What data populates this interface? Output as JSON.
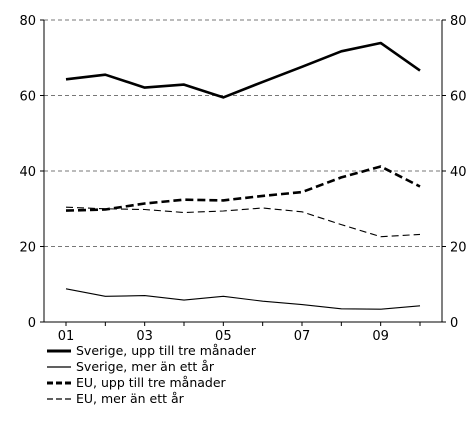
{
  "chart_data": {
    "type": "line",
    "title": "",
    "xlabel": "",
    "ylabel": "",
    "x": [
      2001,
      2002,
      2003,
      2004,
      2005,
      2006,
      2007,
      2008,
      2009,
      2010
    ],
    "x_tick_values": [
      2001,
      2003,
      2005,
      2007,
      2009
    ],
    "x_tick_labels": [
      "01",
      "03",
      "05",
      "07",
      "09"
    ],
    "ylim": [
      0,
      80
    ],
    "y_ticks": [
      0,
      20,
      40,
      60,
      80
    ],
    "y_tick_labels": [
      "0",
      "20",
      "40",
      "60",
      "80"
    ],
    "grid": "horizontal dashed",
    "legend_position": "bottom-left",
    "series": [
      {
        "name": "Sverige, upp till tre månader",
        "style": "solid-thick",
        "values": [
          64.3,
          65.5,
          62.1,
          62.9,
          59.5,
          63.6,
          67.6,
          71.7,
          73.9,
          66.6
        ]
      },
      {
        "name": "Sverige, mer än ett år",
        "style": "solid-thin",
        "values": [
          8.8,
          6.8,
          7.0,
          5.8,
          6.8,
          5.5,
          4.6,
          3.5,
          3.4,
          4.3
        ]
      },
      {
        "name": "EU, upp till tre månader",
        "style": "dashed-thick",
        "values": [
          29.5,
          29.8,
          31.4,
          32.4,
          32.2,
          33.4,
          34.4,
          38.3,
          41.2,
          35.9
        ]
      },
      {
        "name": "EU, mer än ett år",
        "style": "dashed-thin",
        "values": [
          30.4,
          30.0,
          29.8,
          29.0,
          29.4,
          30.2,
          29.2,
          25.8,
          22.6,
          23.2
        ]
      }
    ]
  }
}
